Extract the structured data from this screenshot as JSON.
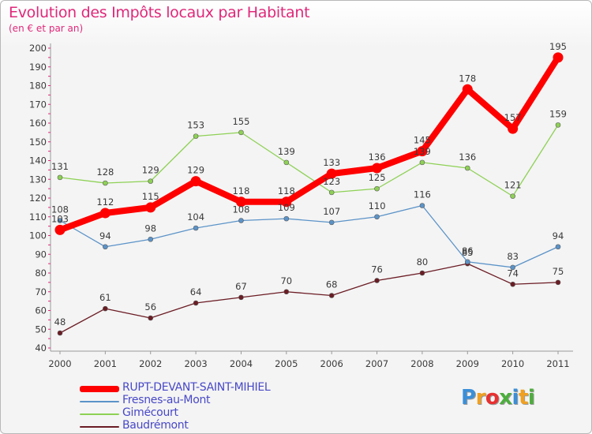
{
  "title": "Evolution des Impôts locaux par Habitant",
  "subtitle": "(en € et par an)",
  "logo_text": "Proxiti",
  "chart_data": {
    "type": "line",
    "title": "Evolution des Impôts locaux par Habitant",
    "subtitle": "(en € et par an)",
    "xlabel": "",
    "ylabel": "",
    "ylim": [
      40,
      200
    ],
    "y_ticks": [
      40,
      50,
      60,
      70,
      80,
      90,
      100,
      110,
      120,
      130,
      140,
      150,
      160,
      170,
      180,
      190,
      200
    ],
    "grid": false,
    "legend_position": "bottom-left",
    "x": [
      "2000",
      "2001",
      "2002",
      "2003",
      "2004",
      "2005",
      "2006",
      "2007",
      "2008",
      "2009",
      "2010",
      "2011"
    ],
    "series": [
      {
        "name": "RUPT-DEVANT-SAINT-MIHIEL",
        "color": "#ff0000",
        "values": [
          103,
          112,
          115,
          129,
          118,
          118,
          133,
          136,
          145,
          178,
          157,
          195
        ]
      },
      {
        "name": "Fresnes-au-Mont",
        "color": "#5b93c8",
        "values": [
          108,
          94,
          98,
          104,
          108,
          109,
          107,
          110,
          116,
          86,
          83,
          94
        ]
      },
      {
        "name": "Gimécourt",
        "color": "#8ed155",
        "values": [
          131,
          128,
          129,
          153,
          155,
          139,
          123,
          125,
          139,
          136,
          121,
          159
        ]
      },
      {
        "name": "Baudrémont",
        "color": "#6b1c24",
        "values": [
          48,
          61,
          56,
          64,
          67,
          70,
          68,
          76,
          80,
          85,
          74,
          75
        ]
      }
    ]
  }
}
